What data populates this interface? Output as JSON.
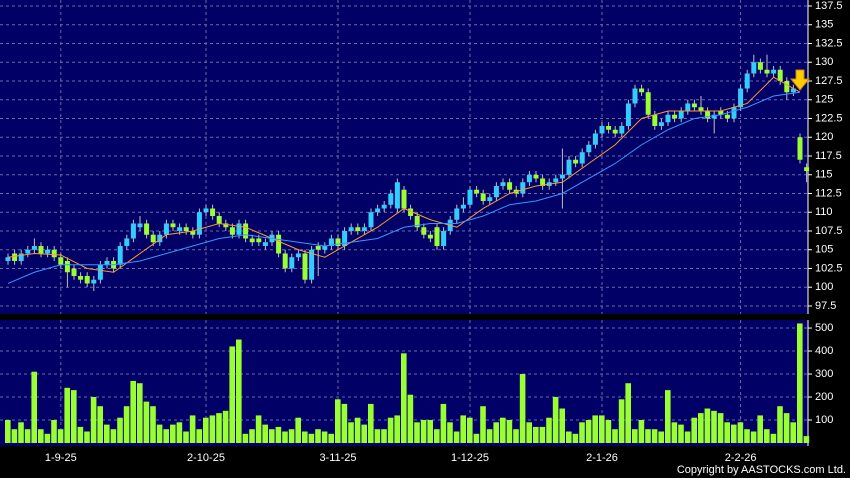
{
  "chart_data": {
    "type": "candlestick",
    "categories": [
      null,
      null,
      null,
      null,
      null,
      null,
      null,
      null,
      "1-9-25",
      null,
      null,
      null,
      null,
      null,
      null,
      null,
      null,
      null,
      null,
      null,
      null,
      null,
      null,
      null,
      null,
      null,
      null,
      null,
      null,
      null,
      "2-10-25",
      null,
      null,
      null,
      null,
      null,
      null,
      null,
      null,
      null,
      null,
      null,
      null,
      null,
      null,
      null,
      null,
      null,
      null,
      null,
      "3-11-25",
      null,
      null,
      null,
      null,
      null,
      null,
      null,
      null,
      null,
      null,
      null,
      null,
      null,
      null,
      null,
      null,
      null,
      null,
      null,
      "1-12-25",
      null,
      null,
      null,
      null,
      null,
      null,
      null,
      null,
      null,
      null,
      null,
      null,
      null,
      null,
      null,
      null,
      null,
      null,
      null,
      "2-1-26",
      null,
      null,
      null,
      null,
      null,
      null,
      null,
      null,
      null,
      null,
      null,
      null,
      null,
      null,
      null,
      null,
      null,
      null,
      null,
      null,
      "2-2-26",
      null,
      null,
      null,
      null,
      null,
      null,
      null,
      null,
      null,
      null
    ],
    "open": [
      103.5,
      104.5,
      103.5,
      104.5,
      105,
      105.5,
      104.5,
      105,
      104,
      103.5,
      102.5,
      101.5,
      101.5,
      100.5,
      101,
      103,
      103.5,
      103,
      105.5,
      106.5,
      108,
      108.5,
      107,
      106,
      107,
      108.5,
      107.5,
      108,
      107.5,
      107,
      110,
      110.5,
      109.5,
      108.5,
      108,
      107,
      108.5,
      106.5,
      106.5,
      105.5,
      106,
      107,
      104.5,
      102.5,
      104,
      104.5,
      101,
      105.5,
      105,
      105.5,
      106.5,
      105.5,
      107.5,
      108,
      107.5,
      108,
      110,
      110.5,
      111,
      110.5,
      113,
      110.5,
      109.5,
      108,
      107,
      108,
      105.5,
      107.5,
      109,
      110.5,
      111,
      113,
      112.5,
      111.5,
      112,
      113.5,
      114,
      113,
      112.5,
      114,
      115,
      114.5,
      113.5,
      114,
      114.5,
      115,
      117,
      116.5,
      118,
      119,
      120.5,
      121.5,
      121,
      120.5,
      121.5,
      124.5,
      126.5,
      126,
      123,
      121.5,
      122,
      123,
      122.5,
      123.5,
      124.5,
      124,
      123.5,
      122.5,
      123.5,
      123,
      122.5,
      124,
      126.5,
      128.5,
      130,
      129,
      128.5,
      129,
      127.5,
      126,
      120,
      116
    ],
    "high": [
      104.5,
      105,
      105,
      105.5,
      106.5,
      106,
      105.5,
      105.5,
      104.5,
      104,
      103,
      102,
      102,
      101.5,
      103.5,
      104,
      104,
      106,
      107,
      109,
      109.5,
      109,
      107.5,
      107.5,
      109,
      109,
      108.5,
      108.5,
      108,
      110.5,
      111,
      111,
      110,
      109,
      108.5,
      109,
      109,
      107,
      107,
      106.5,
      107.5,
      107.5,
      105,
      104.5,
      105,
      105,
      105.5,
      106,
      106,
      107,
      107,
      108,
      108.5,
      108.5,
      108.5,
      110.5,
      111,
      111.5,
      113,
      114.5,
      113.5,
      111,
      110,
      108.5,
      107.5,
      108.5,
      108,
      109.5,
      111,
      112,
      113.5,
      113.5,
      113,
      112.5,
      114,
      114.5,
      114.5,
      113.5,
      114.5,
      115.5,
      115.5,
      115,
      114.5,
      115,
      118.5,
      117.5,
      117.5,
      118.5,
      119.5,
      121,
      122,
      122,
      121.5,
      122,
      125,
      127,
      127,
      126.5,
      123.5,
      122.5,
      123.5,
      123.5,
      124,
      125,
      125,
      125.5,
      124,
      123.5,
      124,
      123.5,
      124.5,
      127,
      129,
      131,
      130.5,
      131,
      129.5,
      129.5,
      128,
      127,
      120.5,
      116.5
    ],
    "low": [
      103,
      103,
      103,
      104,
      104.5,
      104,
      104,
      103.5,
      102.5,
      100,
      101,
      100.5,
      100,
      99.5,
      100.5,
      102.5,
      102,
      102.5,
      105,
      106,
      107.5,
      106.5,
      105.5,
      105.5,
      106.5,
      107.5,
      107,
      107,
      106.5,
      106.5,
      109.5,
      109,
      108,
      107.5,
      106.5,
      106.5,
      106,
      105.5,
      105.5,
      105,
      105.5,
      104,
      102,
      102,
      103.5,
      100.5,
      100.5,
      101.5,
      104.5,
      105,
      105,
      105,
      107,
      107,
      107,
      107.5,
      109.5,
      110,
      110.5,
      110,
      110,
      109,
      107.5,
      106.5,
      106,
      105,
      105,
      107,
      108.5,
      110,
      110.5,
      112,
      111,
      111,
      111.5,
      113,
      112.5,
      112,
      112,
      113.5,
      114,
      113,
      113,
      113.5,
      110.5,
      114.5,
      116,
      116,
      117.5,
      118.5,
      120,
      120.5,
      120,
      120,
      121,
      124,
      125.5,
      122.5,
      121,
      121,
      121.5,
      122,
      122,
      123,
      123.5,
      123,
      122,
      120.5,
      122.5,
      122,
      122,
      123.5,
      126,
      128,
      128.5,
      128,
      128,
      127,
      125,
      125.5,
      116.5,
      114
    ],
    "close": [
      104,
      103.5,
      104.5,
      105,
      105.5,
      104.5,
      105,
      104,
      103,
      102,
      101.5,
      101,
      100.5,
      101,
      103,
      103.5,
      102.5,
      105.5,
      106.5,
      108.5,
      108.5,
      107,
      106,
      107,
      108.5,
      108,
      108,
      107.5,
      107,
      110,
      110.5,
      109.5,
      108.5,
      108,
      107,
      108.5,
      106.5,
      106,
      106,
      106,
      107,
      104.5,
      102.5,
      104,
      104.5,
      101,
      105,
      105,
      105.5,
      106.5,
      105.5,
      107.5,
      108,
      107.5,
      108,
      110,
      110.5,
      111,
      112.5,
      114,
      110.5,
      109.5,
      108,
      107,
      106.5,
      105.5,
      107.5,
      109,
      110.5,
      111,
      113,
      112.5,
      111.5,
      112,
      113.5,
      114,
      113,
      112.5,
      114,
      115,
      114.5,
      113.5,
      114,
      114.5,
      115,
      117,
      116.5,
      118,
      119,
      120.5,
      121.5,
      121,
      120.5,
      121.5,
      124.5,
      126.5,
      126,
      123,
      121.5,
      122,
      123,
      122.5,
      123.5,
      124.5,
      124,
      123.5,
      122.5,
      123,
      123,
      122.5,
      124,
      126.5,
      128.5,
      130,
      129,
      128.5,
      129,
      127.5,
      126,
      126.5,
      117,
      115.5
    ],
    "up_color": "#33ccff",
    "down_color": "#99ff33",
    "wick_color": "#c0c0c0",
    "ylim": [
      96.43,
      138.3
    ],
    "yticks": [
      97.5,
      100,
      102.5,
      105,
      107.5,
      110,
      112.5,
      115,
      117.5,
      120,
      122.5,
      125,
      127.5,
      130,
      132.5,
      135,
      137.5
    ],
    "grid": true,
    "lines": {
      "x": [
        0,
        4,
        8,
        12,
        16,
        20,
        24,
        28,
        32,
        36,
        40,
        44,
        48,
        52,
        56,
        60,
        64,
        68,
        72,
        76,
        80,
        84,
        88,
        92,
        96,
        100,
        104,
        108,
        112,
        116,
        120
      ],
      "series": [
        {
          "color": "#ff9933",
          "values": [
            104,
            104.5,
            104.3,
            102.5,
            102,
            104.5,
            107,
            107.5,
            108.5,
            108,
            106.5,
            105,
            104,
            106,
            108,
            110.5,
            109,
            108,
            110.5,
            112.5,
            113.5,
            114,
            116.5,
            119,
            122.5,
            123.5,
            123.5,
            123.5,
            124.5,
            128,
            126
          ]
        },
        {
          "color": "#3399ff",
          "values": [
            100.5,
            102,
            103,
            103,
            103,
            103.5,
            104.5,
            105.5,
            106.5,
            107,
            106.5,
            106,
            105.5,
            106,
            106.5,
            108,
            108.5,
            108.5,
            109.5,
            111,
            111.5,
            112.5,
            114.5,
            116.5,
            119,
            121,
            122.5,
            123,
            124,
            125.5,
            126
          ]
        }
      ]
    },
    "volume": {
      "color": "#99ff33",
      "ylim": [
        0,
        535
      ],
      "yticks": [
        100,
        200,
        300,
        400,
        500
      ],
      "values": [
        100,
        60,
        90,
        60,
        310,
        60,
        40,
        100,
        60,
        240,
        230,
        70,
        50,
        200,
        160,
        80,
        60,
        110,
        160,
        270,
        260,
        180,
        160,
        80,
        60,
        80,
        90,
        50,
        120,
        60,
        110,
        120,
        130,
        140,
        420,
        450,
        40,
        60,
        120,
        80,
        60,
        70,
        50,
        60,
        110,
        50,
        40,
        60,
        50,
        40,
        190,
        170,
        90,
        110,
        80,
        170,
        60,
        60,
        110,
        120,
        390,
        210,
        90,
        100,
        100,
        60,
        170,
        90,
        50,
        120,
        110,
        40,
        160,
        60,
        90,
        110,
        100,
        60,
        300,
        90,
        70,
        70,
        110,
        200,
        150,
        50,
        40,
        90,
        100,
        120,
        120,
        100,
        60,
        190,
        260,
        60,
        100,
        60,
        60,
        50,
        230,
        90,
        80,
        50,
        110,
        130,
        150,
        140,
        130,
        90,
        80,
        90,
        60,
        50,
        120,
        60,
        40,
        160,
        130,
        90,
        520,
        30
      ]
    },
    "copyright": "Copyright by AASTOCKS.com Ltd."
  }
}
